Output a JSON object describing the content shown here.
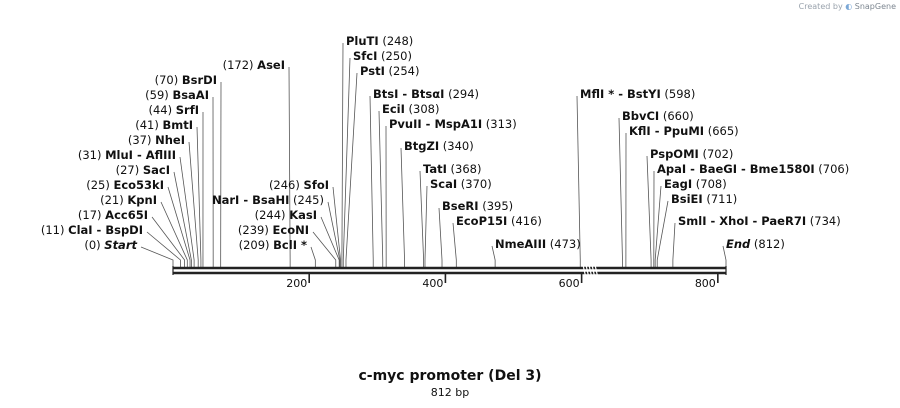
{
  "credit": {
    "prefix": "Created by",
    "brand": "SnapGene"
  },
  "map": {
    "title": "c-myc promoter (Del 3)",
    "length_label": "812 bp",
    "length_bp": 812,
    "ticks": [
      200,
      400,
      600,
      800
    ],
    "colors": {
      "line": "#222222",
      "text": "#111111",
      "leader": "#555555"
    }
  },
  "sites": [
    {
      "pos": 0,
      "pre": "(0)",
      "names": [
        "Start"
      ],
      "italic": true
    },
    {
      "pos": 11,
      "pre": "(11)",
      "names": [
        "ClaI",
        "BspDI"
      ]
    },
    {
      "pos": 17,
      "pre": "(17)",
      "names": [
        "Acc65I"
      ]
    },
    {
      "pos": 21,
      "pre": "(21)",
      "names": [
        "KpnI"
      ]
    },
    {
      "pos": 25,
      "pre": "(25)",
      "names": [
        "Eco53kI"
      ]
    },
    {
      "pos": 27,
      "pre": "(27)",
      "names": [
        "SacI"
      ]
    },
    {
      "pos": 31,
      "pre": "(31)",
      "names": [
        "MluI",
        "AflIII"
      ]
    },
    {
      "pos": 37,
      "pre": "(37)",
      "names": [
        "NheI"
      ]
    },
    {
      "pos": 41,
      "pre": "(41)",
      "names": [
        "BmtI"
      ]
    },
    {
      "pos": 44,
      "pre": "(44)",
      "names": [
        "SrfI"
      ]
    },
    {
      "pos": 59,
      "pre": "(59)",
      "names": [
        "BsaAI"
      ]
    },
    {
      "pos": 70,
      "pre": "(70)",
      "names": [
        "BsrDI"
      ]
    },
    {
      "pos": 172,
      "pre": "(172)",
      "names": [
        "AseI"
      ]
    },
    {
      "pos": 209,
      "pre": "(209)",
      "names": [
        "BclI *"
      ]
    },
    {
      "pos": 239,
      "pre": "(239)",
      "names": [
        "EcoNI"
      ]
    },
    {
      "pos": 244,
      "pre": "(244)",
      "names": [
        "KasI"
      ]
    },
    {
      "pos": 245,
      "pre": "(245)",
      "names": [
        "NarI",
        "BsaHI"
      ],
      "pos_after_name": true
    },
    {
      "pos": 246,
      "pre": "(246)",
      "names": [
        "SfoI"
      ]
    },
    {
      "pos": 248,
      "post": "(248)",
      "names": [
        "PluTI"
      ]
    },
    {
      "pos": 250,
      "post": "(250)",
      "names": [
        "SfcI"
      ]
    },
    {
      "pos": 254,
      "post": "(254)",
      "names": [
        "PstI"
      ]
    },
    {
      "pos": 294,
      "post": "(294)",
      "names": [
        "BtsI",
        "BtsαI"
      ]
    },
    {
      "pos": 308,
      "post": "(308)",
      "names": [
        "EciI"
      ]
    },
    {
      "pos": 313,
      "post": "(313)",
      "names": [
        "PvuII",
        "MspA1I"
      ]
    },
    {
      "pos": 340,
      "post": "(340)",
      "names": [
        "BtgZI"
      ]
    },
    {
      "pos": 368,
      "post": "(368)",
      "names": [
        "TatI"
      ]
    },
    {
      "pos": 370,
      "post": "(370)",
      "names": [
        "ScaI"
      ]
    },
    {
      "pos": 395,
      "post": "(395)",
      "names": [
        "BseRI"
      ]
    },
    {
      "pos": 416,
      "post": "(416)",
      "names": [
        "EcoP15I"
      ]
    },
    {
      "pos": 473,
      "post": "(473)",
      "names": [
        "NmeAIII"
      ]
    },
    {
      "pos": 598,
      "post": "(598)",
      "names": [
        "MflI *",
        "BstYI"
      ]
    },
    {
      "pos": 660,
      "post": "(660)",
      "names": [
        "BbvCI"
      ]
    },
    {
      "pos": 665,
      "post": "(665)",
      "names": [
        "KflI",
        "PpuMI"
      ]
    },
    {
      "pos": 702,
      "post": "(702)",
      "names": [
        "PspOMI"
      ]
    },
    {
      "pos": 706,
      "post": "(706)",
      "names": [
        "ApaI",
        "BaeGI",
        "Bme1580I"
      ]
    },
    {
      "pos": 708,
      "post": "(708)",
      "names": [
        "EagI"
      ]
    },
    {
      "pos": 711,
      "post": "(711)",
      "names": [
        "BsiEI"
      ]
    },
    {
      "pos": 734,
      "post": "(734)",
      "names": [
        "SmlI",
        "XhoI",
        "PaeR7I"
      ]
    },
    {
      "pos": 812,
      "post": "(812)",
      "names": [
        "End"
      ],
      "italic": true
    }
  ]
}
